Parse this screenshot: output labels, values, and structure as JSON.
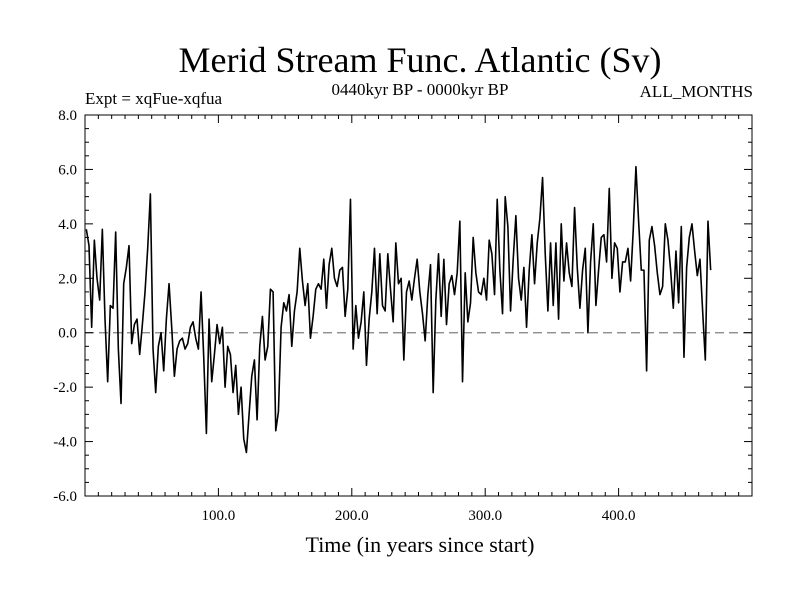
{
  "chart_data": {
    "type": "line",
    "title": "Merid Stream Func. Atlantic (Sv)",
    "left_label": "Expt = xqFue-xqfua",
    "center_label": "0440kyr BP - 0000kyr BP",
    "right_label": "ALL_MONTHS",
    "xlabel": "Time (in years since start)",
    "ylabel": "",
    "xlim": [
      0,
      500
    ],
    "ylim": [
      -6,
      8
    ],
    "x_ticks": [
      100,
      200,
      300,
      400
    ],
    "x_tick_labels": [
      "100.0",
      "200.0",
      "300.0",
      "400.0"
    ],
    "y_ticks": [
      -6,
      -4,
      -2,
      0,
      2,
      4,
      6,
      8
    ],
    "y_tick_labels": [
      "-6.0",
      "-4.0",
      "-2.0",
      "0.0",
      "2.0",
      "4.0",
      "6.0",
      "8.0"
    ],
    "x_minor_step": 10,
    "y_minor_step": 0.5,
    "reference_line": {
      "y": 0,
      "style": "dashed",
      "color": "#808080"
    },
    "series": [
      {
        "name": "xqFue-xqfua",
        "color": "#000000",
        "x_start": 1,
        "x_step": 2,
        "values": [
          3.8,
          3.2,
          0.2,
          3.4,
          2.0,
          1.2,
          3.8,
          0.5,
          -1.8,
          1.0,
          0.9,
          3.7,
          -0.6,
          -2.6,
          1.8,
          2.4,
          3.2,
          -0.4,
          0.3,
          0.5,
          -0.8,
          0.3,
          1.5,
          3.1,
          5.1,
          -0.6,
          -2.2,
          -0.5,
          0.0,
          -1.4,
          0.5,
          1.8,
          0.2,
          -1.6,
          -0.6,
          -0.3,
          -0.2,
          -0.6,
          -0.4,
          0.2,
          0.4,
          -0.2,
          -0.6,
          1.5,
          -0.9,
          -3.7,
          0.5,
          -1.8,
          -0.8,
          0.3,
          -0.4,
          0.2,
          -2.0,
          -0.5,
          -0.8,
          -2.2,
          -1.2,
          -3.0,
          -2.0,
          -3.9,
          -4.4,
          -3.0,
          -1.6,
          -1.0,
          -3.2,
          -0.5,
          0.6,
          -1.0,
          -0.5,
          1.6,
          1.5,
          -3.6,
          -2.9,
          0.2,
          1.1,
          0.8,
          1.4,
          -0.5,
          0.8,
          1.5,
          3.1,
          1.9,
          1.0,
          1.8,
          -0.2,
          0.6,
          1.6,
          1.8,
          1.6,
          2.7,
          0.9,
          2.5,
          3.1,
          2.0,
          1.7,
          2.3,
          2.4,
          0.6,
          1.6,
          4.9,
          -0.6,
          1.0,
          -0.2,
          0.4,
          1.5,
          -1.2,
          0.5,
          1.5,
          3.1,
          0.7,
          2.9,
          1.0,
          0.8,
          2.9,
          1.6,
          0.4,
          3.3,
          1.8,
          2.0,
          -1.0,
          1.5,
          1.9,
          1.2,
          2.0,
          2.7,
          1.5,
          0.7,
          -0.3,
          1.4,
          2.5,
          -2.2,
          1.2,
          2.9,
          0.6,
          2.7,
          0.3,
          1.8,
          2.1,
          1.4,
          2.2,
          4.1,
          -1.8,
          2.2,
          0.4,
          1.1,
          3.5,
          2.2,
          1.5,
          1.4,
          2.0,
          1.2,
          3.4,
          2.9,
          1.4,
          4.9,
          2.3,
          0.7,
          5.0,
          3.9,
          0.8,
          2.7,
          4.3,
          2.0,
          1.2,
          2.4,
          0.2,
          2.3,
          3.6,
          1.8,
          3.3,
          4.2,
          5.7,
          2.9,
          0.8,
          3.3,
          1.0,
          3.3,
          0.5,
          4.0,
          1.9,
          3.3,
          2.2,
          1.7,
          4.6,
          2.4,
          0.9,
          2.3,
          3.1,
          0.0,
          2.6,
          4.0,
          1.0,
          2.3,
          3.5,
          3.6,
          2.6,
          5.3,
          2.0,
          3.3,
          3.1,
          1.5,
          2.6,
          2.6,
          3.1,
          1.9,
          3.8,
          6.1,
          4.1,
          2.3,
          2.3,
          -1.4,
          3.4,
          3.9,
          3.2,
          2.2,
          1.4,
          1.7,
          4.0,
          3.4,
          2.3,
          0.9,
          3.0,
          1.1,
          3.9,
          -0.9,
          2.4,
          3.5,
          4.0,
          3.0,
          2.1,
          2.7,
          0.8,
          -1.0,
          4.1,
          2.3
        ]
      }
    ]
  }
}
